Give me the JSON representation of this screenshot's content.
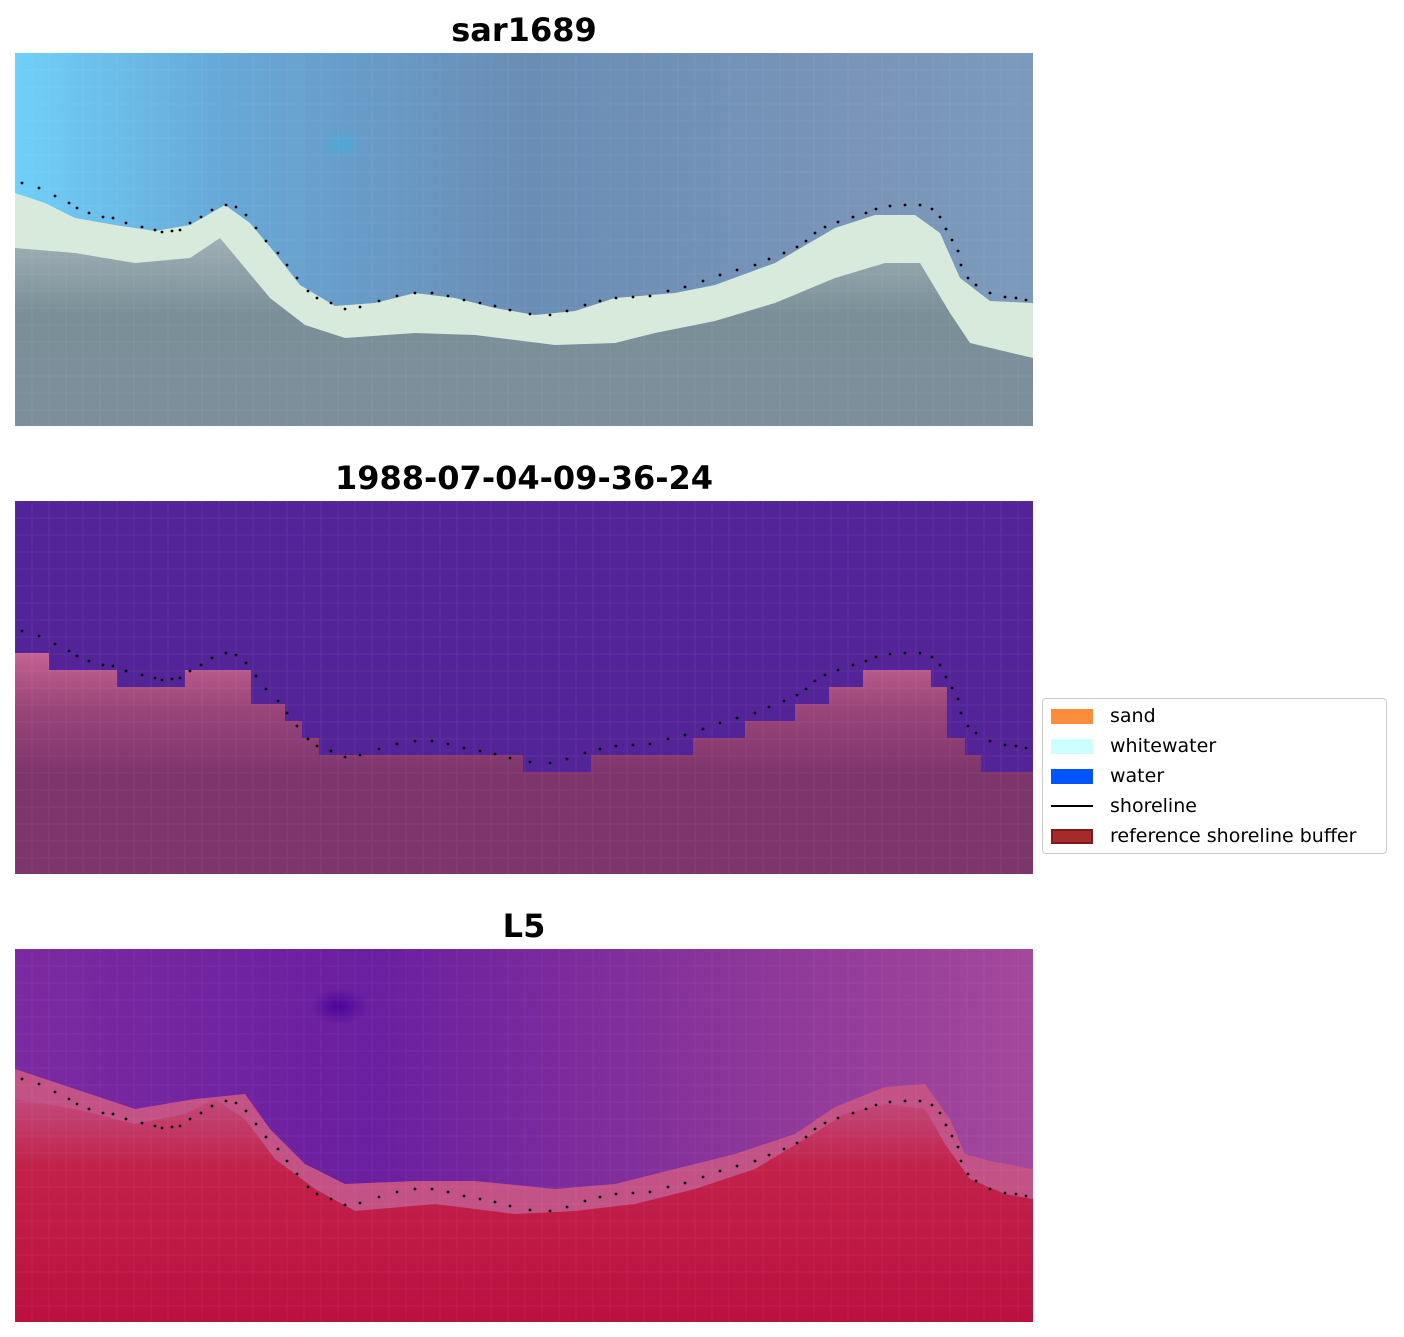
{
  "panels": [
    {
      "title": "sar1689"
    },
    {
      "title": "1988-07-04-09-36-24"
    },
    {
      "title": "L5"
    }
  ],
  "legend": {
    "items": [
      {
        "label": "sand",
        "color": "#ff8c3a",
        "kind": "patch"
      },
      {
        "label": "whitewater",
        "color": "#ccffff",
        "kind": "patch"
      },
      {
        "label": "water",
        "color": "#0055ff",
        "kind": "patch"
      },
      {
        "label": "shoreline",
        "color": "#000000",
        "kind": "line"
      },
      {
        "label": "reference shoreline buffer",
        "color": "#a52a2a",
        "kind": "patch"
      }
    ]
  },
  "colors": {
    "classified_water": "#532498",
    "classified_land_edge": "#c46293",
    "classified_land": "#7e356c",
    "rgb_water": "#6d8cb4",
    "rgb_whitewater": "#ddecdc",
    "rgb_land": "#7a8e99",
    "mndwi_water": "#7b2aa0",
    "mndwi_land": "#c2224a"
  }
}
